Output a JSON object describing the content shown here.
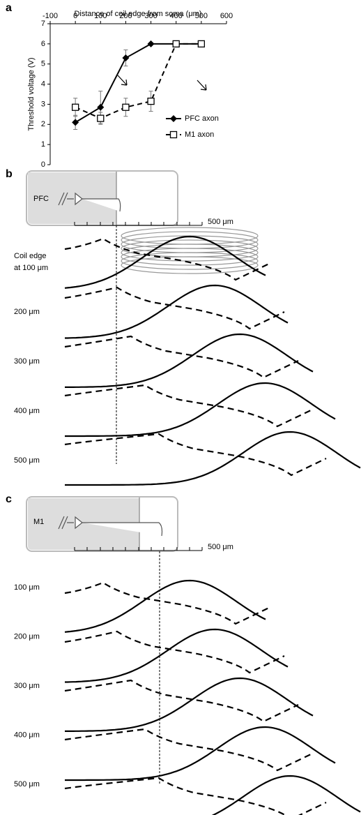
{
  "chart_data": {
    "type": "line",
    "x_label": "Distance of coil edge from soma (μm)",
    "y_label": "Threshold voltage (V)",
    "x": [
      0,
      100,
      200,
      300,
      400,
      500
    ],
    "series": [
      {
        "name": "PFC axon",
        "color": "#000000",
        "marker": "diamond",
        "dashed": false,
        "values": [
          2.1,
          2.85,
          5.3,
          6,
          6,
          6
        ],
        "errors": [
          0.35,
          0.8,
          0.4,
          null,
          null,
          null
        ]
      },
      {
        "name": "M1 axon",
        "color": "#000000",
        "marker": "open-square",
        "dashed": true,
        "values": [
          2.85,
          2.3,
          2.85,
          3.15,
          6,
          6
        ],
        "errors": [
          0.45,
          0.3,
          0.45,
          0.5,
          null,
          null
        ]
      }
    ],
    "xlim": [
      -100,
      600
    ],
    "xticks": [
      -100,
      0,
      100,
      200,
      300,
      400,
      500,
      600
    ],
    "ylim": [
      0,
      7
    ],
    "yticks": [
      0,
      1,
      2,
      3,
      4,
      5,
      6,
      7
    ],
    "x_axis_position": "top",
    "legend": "right",
    "grid": false
  },
  "panels": {
    "a": {
      "label": "a"
    },
    "b": {
      "label": "b",
      "region": "PFC",
      "scale": "500 μm",
      "coil_label": [
        "Coil edge",
        "at 100 μm"
      ],
      "rows": [
        "200 μm",
        "300 μm",
        "400 μm",
        "500 μm"
      ]
    },
    "c": {
      "label": "c",
      "region": "M1",
      "scale": "500 μm",
      "rows": [
        "100 μm",
        "200 μm",
        "300 μm",
        "400 μm",
        "500 μm"
      ]
    }
  }
}
